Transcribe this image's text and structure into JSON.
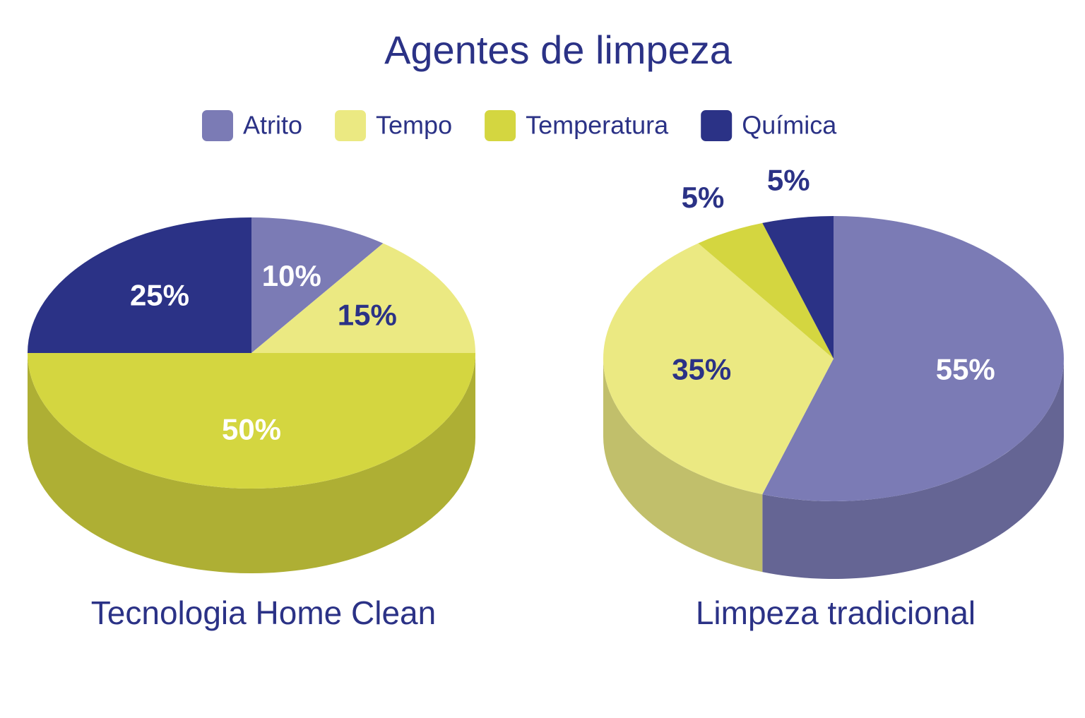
{
  "title": "Agentes de limpeza",
  "chart_data": [
    {
      "type": "pie",
      "title": "Tecnologia Home Clean",
      "categories": [
        "Atrito",
        "Tempo",
        "Temperatura",
        "Química"
      ],
      "values": [
        10,
        15,
        50,
        25
      ],
      "value_labels": [
        "10%",
        "15%",
        "50%",
        "25%"
      ],
      "colors": [
        "#7b7bb5",
        "#ebe982",
        "#d4d640",
        "#2b3286"
      ]
    },
    {
      "type": "pie",
      "title": "Limpeza tradicional",
      "categories": [
        "Atrito",
        "Tempo",
        "Temperatura",
        "Química"
      ],
      "values": [
        55,
        35,
        5,
        5
      ],
      "value_labels": [
        "55%",
        "35%",
        "5%",
        "5%"
      ],
      "colors": [
        "#7b7bb5",
        "#ebe982",
        "#d4d640",
        "#2b3286"
      ]
    }
  ]
}
